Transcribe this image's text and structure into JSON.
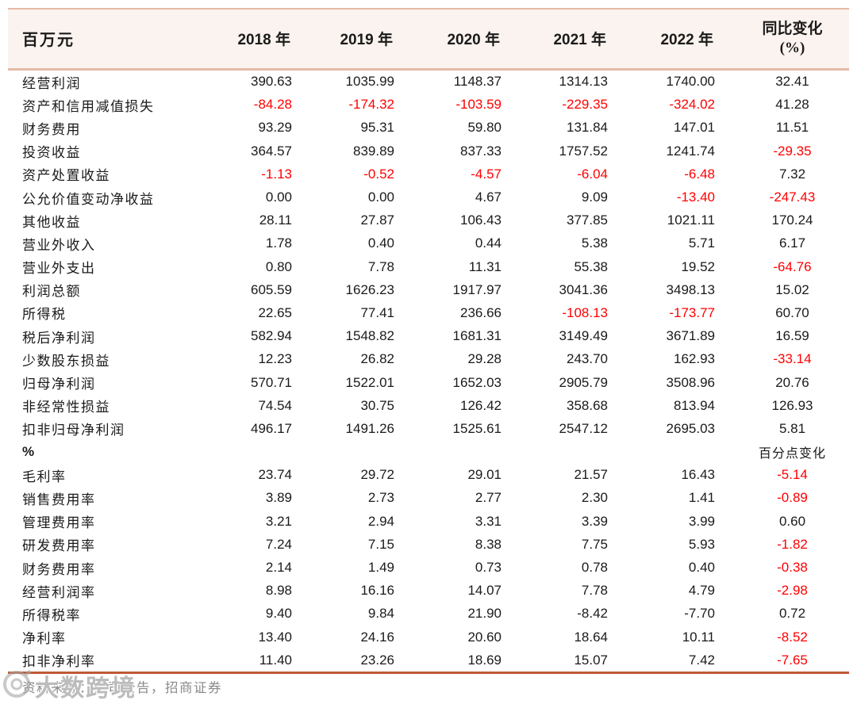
{
  "table": {
    "unit_header": "百万元",
    "year_columns": [
      "2018 年",
      "2019 年",
      "2020 年",
      "2021 年",
      "2022 年"
    ],
    "yoy_header_line1": "同比变化",
    "yoy_header_line2": "(%)",
    "section1_rows": [
      {
        "label": "经营利润",
        "values": [
          "390.63",
          "1035.99",
          "1148.37",
          "1314.13",
          "1740.00"
        ],
        "yoy": "32.41",
        "red": [
          0,
          0,
          0,
          0,
          0,
          0
        ]
      },
      {
        "label": "资产和信用减值损失",
        "values": [
          "-84.28",
          "-174.32",
          "-103.59",
          "-229.35",
          "-324.02"
        ],
        "yoy": "41.28",
        "red": [
          1,
          1,
          1,
          1,
          1,
          0
        ]
      },
      {
        "label": "财务费用",
        "values": [
          "93.29",
          "95.31",
          "59.80",
          "131.84",
          "147.01"
        ],
        "yoy": "11.51",
        "red": [
          0,
          0,
          0,
          0,
          0,
          0
        ]
      },
      {
        "label": "投资收益",
        "values": [
          "364.57",
          "839.89",
          "837.33",
          "1757.52",
          "1241.74"
        ],
        "yoy": "-29.35",
        "red": [
          0,
          0,
          0,
          0,
          0,
          1
        ]
      },
      {
        "label": "资产处置收益",
        "values": [
          "-1.13",
          "-0.52",
          "-4.57",
          "-6.04",
          "-6.48"
        ],
        "yoy": "7.32",
        "red": [
          1,
          1,
          1,
          1,
          1,
          0
        ]
      },
      {
        "label": "公允价值变动净收益",
        "values": [
          "0.00",
          "0.00",
          "4.67",
          "9.09",
          "-13.40"
        ],
        "yoy": "-247.43",
        "red": [
          0,
          0,
          0,
          0,
          1,
          1
        ]
      },
      {
        "label": "其他收益",
        "values": [
          "28.11",
          "27.87",
          "106.43",
          "377.85",
          "1021.11"
        ],
        "yoy": "170.24",
        "red": [
          0,
          0,
          0,
          0,
          0,
          0
        ]
      },
      {
        "label": "营业外收入",
        "values": [
          "1.78",
          "0.40",
          "0.44",
          "5.38",
          "5.71"
        ],
        "yoy": "6.17",
        "red": [
          0,
          0,
          0,
          0,
          0,
          0
        ]
      },
      {
        "label": "营业外支出",
        "values": [
          "0.80",
          "7.78",
          "11.31",
          "55.38",
          "19.52"
        ],
        "yoy": "-64.76",
        "red": [
          0,
          0,
          0,
          0,
          0,
          1
        ]
      },
      {
        "label": "利润总额",
        "values": [
          "605.59",
          "1626.23",
          "1917.97",
          "3041.36",
          "3498.13"
        ],
        "yoy": "15.02",
        "red": [
          0,
          0,
          0,
          0,
          0,
          0
        ]
      },
      {
        "label": "所得税",
        "values": [
          "22.65",
          "77.41",
          "236.66",
          "-108.13",
          "-173.77"
        ],
        "yoy": "60.70",
        "red": [
          0,
          0,
          0,
          1,
          1,
          0
        ]
      },
      {
        "label": "税后净利润",
        "values": [
          "582.94",
          "1548.82",
          "1681.31",
          "3149.49",
          "3671.89"
        ],
        "yoy": "16.59",
        "red": [
          0,
          0,
          0,
          0,
          0,
          0
        ]
      },
      {
        "label": "少数股东损益",
        "values": [
          "12.23",
          "26.82",
          "29.28",
          "243.70",
          "162.93"
        ],
        "yoy": "-33.14",
        "red": [
          0,
          0,
          0,
          0,
          0,
          1
        ]
      },
      {
        "label": "归母净利润",
        "values": [
          "570.71",
          "1522.01",
          "1652.03",
          "2905.79",
          "3508.96"
        ],
        "yoy": "20.76",
        "red": [
          0,
          0,
          0,
          0,
          0,
          0
        ]
      },
      {
        "label": "非经常性损益",
        "values": [
          "74.54",
          "30.75",
          "126.42",
          "358.68",
          "813.94"
        ],
        "yoy": "126.93",
        "red": [
          0,
          0,
          0,
          0,
          0,
          0
        ]
      },
      {
        "label": "扣非归母净利润",
        "values": [
          "496.17",
          "1491.26",
          "1525.61",
          "2547.12",
          "2695.03"
        ],
        "yoy": "5.81",
        "red": [
          0,
          0,
          0,
          0,
          0,
          0
        ]
      }
    ],
    "section_divider": {
      "label": "%",
      "yoy_note": "百分点变化"
    },
    "section2_rows": [
      {
        "label": "毛利率",
        "values": [
          "23.74",
          "29.72",
          "29.01",
          "21.57",
          "16.43"
        ],
        "yoy": "-5.14",
        "red": [
          0,
          0,
          0,
          0,
          0,
          1
        ]
      },
      {
        "label": "销售费用率",
        "values": [
          "3.89",
          "2.73",
          "2.77",
          "2.30",
          "1.41"
        ],
        "yoy": "-0.89",
        "red": [
          0,
          0,
          0,
          0,
          0,
          1
        ]
      },
      {
        "label": "管理费用率",
        "values": [
          "3.21",
          "2.94",
          "3.31",
          "3.39",
          "3.99"
        ],
        "yoy": "0.60",
        "red": [
          0,
          0,
          0,
          0,
          0,
          0
        ]
      },
      {
        "label": "研发费用率",
        "values": [
          "7.24",
          "7.15",
          "8.38",
          "7.75",
          "5.93"
        ],
        "yoy": "-1.82",
        "red": [
          0,
          0,
          0,
          0,
          0,
          1
        ]
      },
      {
        "label": "财务费用率",
        "values": [
          "2.14",
          "1.49",
          "0.73",
          "0.78",
          "0.40"
        ],
        "yoy": "-0.38",
        "red": [
          0,
          0,
          0,
          0,
          0,
          1
        ]
      },
      {
        "label": "经营利润率",
        "values": [
          "8.98",
          "16.16",
          "14.07",
          "7.78",
          "4.79"
        ],
        "yoy": "-2.98",
        "red": [
          0,
          0,
          0,
          0,
          0,
          1
        ]
      },
      {
        "label": "所得税率",
        "values": [
          "9.40",
          "9.84",
          "21.90",
          "-8.42",
          "-7.70"
        ],
        "yoy": "0.72",
        "red": [
          0,
          0,
          0,
          0,
          0,
          0
        ]
      },
      {
        "label": "净利率",
        "values": [
          "13.40",
          "24.16",
          "20.60",
          "18.64",
          "10.11"
        ],
        "yoy": "-8.52",
        "red": [
          0,
          0,
          0,
          0,
          0,
          1
        ]
      },
      {
        "label": "扣非净利率",
        "values": [
          "11.40",
          "23.26",
          "18.69",
          "15.07",
          "7.42"
        ],
        "yoy": "-7.65",
        "red": [
          0,
          0,
          0,
          0,
          0,
          1
        ]
      }
    ]
  },
  "footer": {
    "source_text": "资料来源：公司公告，招商证券"
  },
  "watermark": {
    "text": "大数跨境"
  },
  "colors": {
    "negative": "#ff0000",
    "text": "#1a1a1a",
    "header_bg": "#fbf3ef",
    "header_border": "#e6baa7",
    "table_bottom_border": "#bf5a38",
    "footer_text": "#8a8a8a"
  }
}
